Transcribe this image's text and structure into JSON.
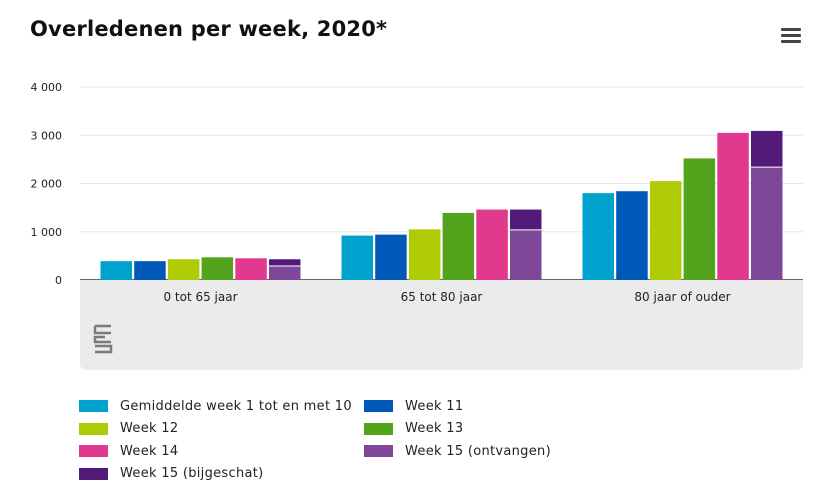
{
  "title": "Overleden per week, 2020*",
  "menu_icon": "hamburger-menu-icon",
  "logo_icon": "cbs-logo-icon",
  "chart_data": {
    "type": "bar",
    "title": "Overledenen per week, 2020*",
    "categories": [
      "0 tot 65 jaar",
      "65 tot 80 jaar",
      "80 jaar of ouder"
    ],
    "y_ticks": [
      "0",
      "1 000",
      "2 000",
      "3 000",
      "4 000"
    ],
    "ylim": [
      0,
      4000
    ],
    "grid": true,
    "legend_position": "bottom",
    "series": [
      {
        "name": "Gemiddelde week 1 tot en met 10",
        "color": "#00a1cd",
        "values": [
          390,
          920,
          1800
        ]
      },
      {
        "name": "Week 11",
        "color": "#0058b8",
        "values": [
          390,
          940,
          1840
        ]
      },
      {
        "name": "Week 12",
        "color": "#afcb05",
        "values": [
          430,
          1050,
          2050
        ]
      },
      {
        "name": "Week 13",
        "color": "#53a31d",
        "values": [
          470,
          1390,
          2520
        ]
      },
      {
        "name": "Week 14",
        "color": "#e1398d",
        "values": [
          450,
          1460,
          3050
        ]
      },
      {
        "name": "Week 15 (ontvangen)",
        "color": "#7f4797",
        "values": [
          290,
          1040,
          2340
        ],
        "stack": "week15"
      },
      {
        "name": "Week 15 (bijgeschat)",
        "color": "#531b79",
        "values": [
          140,
          420,
          750
        ],
        "stack": "week15"
      }
    ]
  }
}
